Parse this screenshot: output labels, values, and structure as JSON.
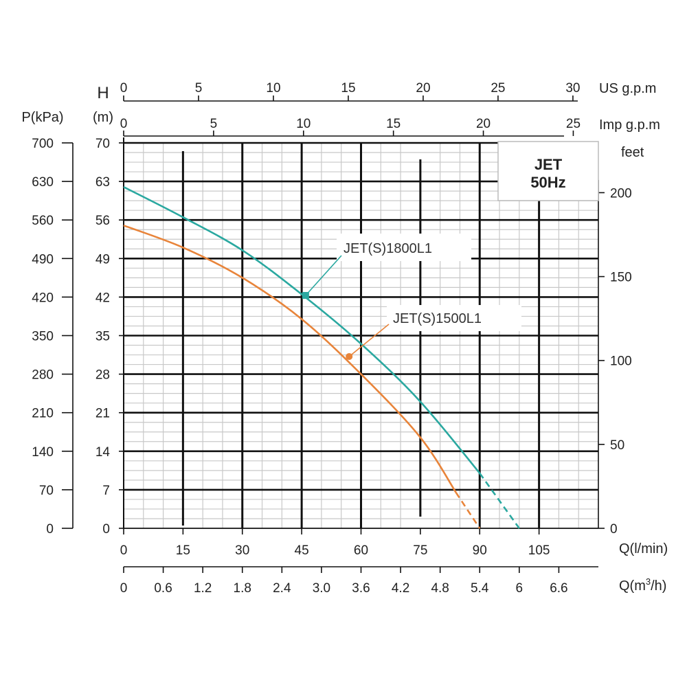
{
  "chart_data": {
    "type": "line",
    "title": "",
    "badge": {
      "line1": "JET",
      "line2": "50Hz"
    },
    "x_axis": {
      "label": "Q(l/min)",
      "ticks": [
        0,
        15,
        30,
        45,
        60,
        75,
        90,
        105
      ],
      "xlim": [
        0,
        120
      ]
    },
    "x_axis_m3h": {
      "label_prefix": "Q(m",
      "label_sup": "3",
      "label_suffix": "/h)",
      "tick_labels": [
        "0",
        "0.6",
        "1.2",
        "1.8",
        "2.4",
        "3.0",
        "3.6",
        "4.2",
        "4.8",
        "5.4",
        "6",
        "6.6"
      ]
    },
    "x_axis_us_gpm": {
      "label": "US g.p.m",
      "ticks": [
        0,
        5,
        10,
        15,
        20,
        25,
        30
      ]
    },
    "x_axis_imp_gpm": {
      "label": "Imp g.p.m",
      "ticks": [
        0,
        5,
        10,
        15,
        20,
        25
      ]
    },
    "y_axis_m": {
      "label_letter": "H",
      "label_unit": "(m)",
      "ticks": [
        0,
        7,
        14,
        21,
        28,
        35,
        42,
        49,
        56,
        63,
        70
      ],
      "ylim": [
        0,
        70
      ]
    },
    "y_axis_kpa": {
      "label": "P(kPa)",
      "ticks": [
        0,
        70,
        140,
        210,
        280,
        350,
        420,
        490,
        560,
        630,
        700
      ]
    },
    "y_axis_feet": {
      "label": "feet",
      "ticks": [
        0,
        50,
        100,
        150,
        200
      ]
    },
    "series": [
      {
        "name": "JET(S)1800L1",
        "color": "#2aa8a0",
        "points": [
          [
            0,
            62
          ],
          [
            15,
            56.5
          ],
          [
            30,
            50.5
          ],
          [
            45,
            42.5
          ],
          [
            60,
            33.5
          ],
          [
            75,
            23
          ],
          [
            90,
            10
          ]
        ],
        "dashed_points": [
          [
            90,
            10
          ],
          [
            100,
            0
          ]
        ],
        "marker": [
          46,
          42.3
        ]
      },
      {
        "name": "JET(S)1500L1",
        "color": "#e8843a",
        "points": [
          [
            0,
            55
          ],
          [
            15,
            51
          ],
          [
            30,
            45.5
          ],
          [
            45,
            38
          ],
          [
            60,
            28
          ],
          [
            75,
            16.5
          ],
          [
            84,
            6.5
          ]
        ],
        "dashed_points": [
          [
            84,
            6.5
          ],
          [
            90,
            0
          ]
        ],
        "marker": [
          57,
          31.2
        ]
      }
    ]
  }
}
